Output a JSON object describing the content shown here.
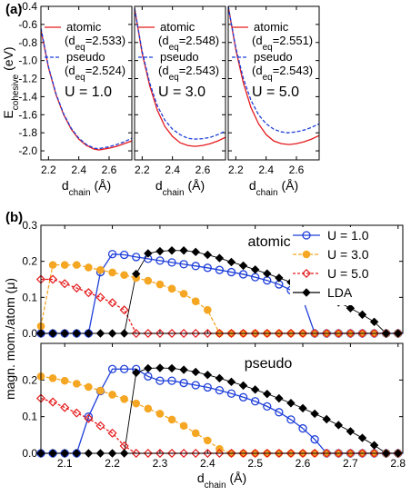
{
  "panel_labels": {
    "a": "(a)",
    "b": "(b)"
  },
  "colors": {
    "atomic": "#e41a1c",
    "pseudo": "#1f3fd9",
    "U1": "#1f3fd9",
    "U3": "#f5a623",
    "U5": "#e41a1c",
    "LDA": "#000000"
  },
  "chart_data": [
    {
      "type": "line",
      "title": "U = 1.0",
      "xlabel": "d_chain (Å)",
      "ylabel": "E_cohesive (eV)",
      "xlim": [
        2.15,
        2.75
      ],
      "ylim": [
        -2.1,
        -0.4
      ],
      "xticks": [
        "2.2",
        "2.4",
        "2.6"
      ],
      "yticks": [
        "-0.4",
        "-0.6",
        "-0.8",
        "-1.0",
        "-1.2",
        "-1.4",
        "-1.6",
        "-1.8",
        "-2.0"
      ],
      "legend": [
        {
          "name": "atomic",
          "sub": "(d_eq=2.533)"
        },
        {
          "name": "pseudo",
          "sub": "(d_eq=2.524)"
        }
      ],
      "series": [
        {
          "name": "atomic",
          "x": [
            2.15,
            2.2,
            2.25,
            2.3,
            2.35,
            2.4,
            2.45,
            2.5,
            2.533,
            2.55,
            2.6,
            2.65,
            2.7,
            2.75
          ],
          "y": [
            -0.66,
            -1.08,
            -1.38,
            -1.6,
            -1.76,
            -1.87,
            -1.94,
            -1.98,
            -1.99,
            -1.985,
            -1.97,
            -1.95,
            -1.92,
            -1.89
          ]
        },
        {
          "name": "pseudo",
          "x": [
            2.15,
            2.2,
            2.25,
            2.3,
            2.35,
            2.4,
            2.45,
            2.5,
            2.524,
            2.55,
            2.6,
            2.65,
            2.7,
            2.75
          ],
          "y": [
            -0.64,
            -1.07,
            -1.37,
            -1.59,
            -1.75,
            -1.86,
            -1.93,
            -1.97,
            -1.975,
            -1.97,
            -1.955,
            -1.93,
            -1.9,
            -1.86
          ]
        }
      ]
    },
    {
      "type": "line",
      "title": "U = 3.0",
      "xlabel": "d_chain (Å)",
      "xlim": [
        2.15,
        2.75
      ],
      "ylim": [
        -2.1,
        -0.4
      ],
      "xticks": [
        "2.2",
        "2.4",
        "2.6"
      ],
      "legend": [
        {
          "name": "atomic",
          "sub": "(d_eq=2.548)"
        },
        {
          "name": "pseudo",
          "sub": "(d_eq=2.543)"
        }
      ],
      "series": [
        {
          "name": "atomic",
          "x": [
            2.15,
            2.2,
            2.25,
            2.3,
            2.35,
            2.4,
            2.45,
            2.5,
            2.548,
            2.6,
            2.65,
            2.7,
            2.75
          ],
          "y": [
            -0.42,
            -0.92,
            -1.28,
            -1.55,
            -1.73,
            -1.84,
            -1.91,
            -1.94,
            -1.95,
            -1.94,
            -1.92,
            -1.89,
            -1.85
          ]
        },
        {
          "name": "pseudo",
          "x": [
            2.15,
            2.2,
            2.25,
            2.3,
            2.35,
            2.4,
            2.45,
            2.5,
            2.543,
            2.6,
            2.65,
            2.7,
            2.75
          ],
          "y": [
            -0.42,
            -0.9,
            -1.25,
            -1.5,
            -1.66,
            -1.76,
            -1.82,
            -1.86,
            -1.87,
            -1.865,
            -1.85,
            -1.82,
            -1.78
          ]
        }
      ]
    },
    {
      "type": "line",
      "title": "U = 5.0",
      "xlabel": "d_chain (Å)",
      "xlim": [
        2.15,
        2.75
      ],
      "ylim": [
        -2.1,
        -0.4
      ],
      "xticks": [
        "2.2",
        "2.4",
        "2.6"
      ],
      "legend": [
        {
          "name": "atomic",
          "sub": "(d_eq=2.551)"
        },
        {
          "name": "pseudo",
          "sub": "(d_eq=2.543)"
        }
      ],
      "series": [
        {
          "name": "atomic",
          "x": [
            2.15,
            2.2,
            2.25,
            2.3,
            2.35,
            2.4,
            2.45,
            2.5,
            2.551,
            2.6,
            2.65,
            2.7,
            2.75
          ],
          "y": [
            -0.4,
            -0.88,
            -1.25,
            -1.52,
            -1.7,
            -1.82,
            -1.89,
            -1.92,
            -1.93,
            -1.92,
            -1.9,
            -1.87,
            -1.83
          ]
        },
        {
          "name": "pseudo",
          "x": [
            2.15,
            2.2,
            2.25,
            2.3,
            2.35,
            2.4,
            2.45,
            2.5,
            2.543,
            2.6,
            2.65,
            2.7,
            2.75
          ],
          "y": [
            -0.4,
            -0.86,
            -1.2,
            -1.44,
            -1.6,
            -1.7,
            -1.76,
            -1.79,
            -1.8,
            -1.79,
            -1.77,
            -1.74,
            -1.7
          ]
        }
      ]
    },
    {
      "type": "line",
      "title": "atomic",
      "ylabel": "magn. mom./atom (μB)",
      "xlim": [
        2.05,
        2.81
      ],
      "ylim": [
        0,
        0.3
      ],
      "yticks": [
        "0.0",
        "0.1",
        "0.2",
        "0.3"
      ],
      "legend": [
        "U = 1.0",
        "U = 3.0",
        "U = 5.0",
        "LDA"
      ],
      "series": [
        {
          "name": "U = 1.0",
          "x": [
            2.05,
            2.075,
            2.1,
            2.125,
            2.15,
            2.175,
            2.2,
            2.225,
            2.25,
            2.275,
            2.3,
            2.325,
            2.35,
            2.375,
            2.4,
            2.425,
            2.45,
            2.475,
            2.5,
            2.525,
            2.55,
            2.575,
            2.6,
            2.625,
            2.65,
            2.675,
            2.7,
            2.725,
            2.75,
            2.775,
            2.8
          ],
          "y": [
            0,
            0,
            0,
            0,
            0,
            0.17,
            0.22,
            0.218,
            0.212,
            0.207,
            0.202,
            0.197,
            0.192,
            0.187,
            0.182,
            0.176,
            0.17,
            0.164,
            0.156,
            0.147,
            0.136,
            0.12,
            0.095,
            0,
            0,
            0,
            0,
            0,
            0,
            0,
            0
          ]
        },
        {
          "name": "U = 3.0",
          "x": [
            2.05,
            2.075,
            2.1,
            2.125,
            2.15,
            2.175,
            2.2,
            2.225,
            2.25,
            2.275,
            2.3,
            2.325,
            2.35,
            2.375,
            2.4,
            2.425,
            2.45,
            2.475,
            2.5,
            2.525,
            2.55,
            2.575,
            2.6,
            2.625,
            2.65,
            2.675,
            2.7,
            2.725,
            2.75,
            2.775,
            2.8
          ],
          "y": [
            0.02,
            0.19,
            0.19,
            0.19,
            0.183,
            0.176,
            0.169,
            0.162,
            0.154,
            0.146,
            0.136,
            0.124,
            0.11,
            0.089,
            0.065,
            0,
            0,
            0,
            0,
            0,
            0,
            0,
            0,
            0,
            0,
            0,
            0,
            0,
            0,
            0,
            0
          ]
        },
        {
          "name": "U = 5.0",
          "x": [
            2.05,
            2.075,
            2.1,
            2.125,
            2.15,
            2.175,
            2.2,
            2.225,
            2.25,
            2.275,
            2.3,
            2.325,
            2.35,
            2.375,
            2.4,
            2.425,
            2.45,
            2.475,
            2.5,
            2.525,
            2.55,
            2.575,
            2.6,
            2.625,
            2.65,
            2.675,
            2.7,
            2.725,
            2.75,
            2.775,
            2.8
          ],
          "y": [
            0.15,
            0.15,
            0.138,
            0.126,
            0.113,
            0.1,
            0.085,
            0.065,
            0,
            0,
            0,
            0,
            0,
            0,
            0,
            0,
            0,
            0,
            0,
            0,
            0,
            0,
            0,
            0,
            0,
            0,
            0,
            0,
            0,
            0,
            0
          ]
        },
        {
          "name": "LDA",
          "x": [
            2.05,
            2.075,
            2.1,
            2.125,
            2.15,
            2.175,
            2.2,
            2.225,
            2.25,
            2.275,
            2.3,
            2.325,
            2.35,
            2.375,
            2.4,
            2.425,
            2.45,
            2.475,
            2.5,
            2.525,
            2.55,
            2.575,
            2.6,
            2.625,
            2.65,
            2.675,
            2.7,
            2.725,
            2.75,
            2.775,
            2.8
          ],
          "y": [
            0,
            0,
            0,
            0,
            0,
            0,
            0,
            0,
            0.165,
            0.222,
            0.228,
            0.23,
            0.23,
            0.226,
            0.218,
            0.209,
            0.198,
            0.188,
            0.177,
            0.166,
            0.154,
            0.142,
            0.129,
            0.115,
            0.101,
            0.086,
            0.07,
            0.052,
            0.032,
            0,
            0
          ]
        }
      ]
    },
    {
      "type": "line",
      "title": "pseudo",
      "xlabel": "d_chain (Å)",
      "ylabel": "magn. mom./atom (μB)",
      "xlim": [
        2.05,
        2.81
      ],
      "ylim": [
        0,
        0.3
      ],
      "xticks": [
        "2.1",
        "2.2",
        "2.3",
        "2.4",
        "2.5",
        "2.6",
        "2.7",
        "2.8"
      ],
      "yticks": [
        "0.0",
        "0.1",
        "0.2"
      ],
      "series": [
        {
          "name": "U = 1.0",
          "x": [
            2.05,
            2.075,
            2.1,
            2.125,
            2.15,
            2.175,
            2.2,
            2.225,
            2.25,
            2.275,
            2.3,
            2.325,
            2.35,
            2.375,
            2.4,
            2.425,
            2.45,
            2.475,
            2.5,
            2.525,
            2.55,
            2.575,
            2.6,
            2.625,
            2.65,
            2.675,
            2.7,
            2.725,
            2.75,
            2.775,
            2.8
          ],
          "y": [
            0,
            0,
            0,
            0,
            0.1,
            0.17,
            0.23,
            0.23,
            0.23,
            0.21,
            0.198,
            0.198,
            0.192,
            0.186,
            0.18,
            0.172,
            0.163,
            0.153,
            0.142,
            0.128,
            0.112,
            0.092,
            0.068,
            0.038,
            0,
            0,
            0,
            0,
            0,
            0,
            0
          ]
        },
        {
          "name": "U = 3.0",
          "x": [
            2.05,
            2.075,
            2.1,
            2.125,
            2.15,
            2.175,
            2.2,
            2.225,
            2.25,
            2.275,
            2.3,
            2.325,
            2.35,
            2.375,
            2.4,
            2.425,
            2.45,
            2.475,
            2.5,
            2.525,
            2.55,
            2.575,
            2.6,
            2.625,
            2.65,
            2.675,
            2.7,
            2.725,
            2.75,
            2.775,
            2.8
          ],
          "y": [
            0.21,
            0.205,
            0.198,
            0.19,
            0.181,
            0.171,
            0.16,
            0.148,
            0.136,
            0.122,
            0.108,
            0.092,
            0.075,
            0.055,
            0.035,
            0.012,
            0,
            0,
            0,
            0,
            0,
            0,
            0,
            0,
            0,
            0,
            0,
            0,
            0,
            0,
            0
          ]
        },
        {
          "name": "U = 5.0",
          "x": [
            2.05,
            2.075,
            2.1,
            2.125,
            2.15,
            2.175,
            2.2,
            2.225,
            2.25,
            2.275,
            2.3,
            2.325,
            2.35,
            2.375,
            2.4,
            2.425,
            2.45,
            2.475,
            2.5,
            2.525,
            2.55,
            2.575,
            2.6,
            2.625,
            2.65,
            2.675,
            2.7,
            2.725,
            2.75,
            2.775,
            2.8
          ],
          "y": [
            0.15,
            0.14,
            0.125,
            0.11,
            0.095,
            0.075,
            0.055,
            0.02,
            0,
            0,
            0,
            0,
            0,
            0,
            0,
            0,
            0,
            0,
            0,
            0,
            0,
            0,
            0,
            0,
            0,
            0,
            0,
            0,
            0,
            0,
            0
          ]
        },
        {
          "name": "LDA",
          "x": [
            2.05,
            2.075,
            2.1,
            2.125,
            2.15,
            2.175,
            2.2,
            2.225,
            2.25,
            2.275,
            2.3,
            2.325,
            2.35,
            2.375,
            2.4,
            2.425,
            2.45,
            2.475,
            2.5,
            2.525,
            2.55,
            2.575,
            2.6,
            2.625,
            2.65,
            2.675,
            2.7,
            2.725,
            2.75,
            2.775,
            2.8
          ],
          "y": [
            0,
            0,
            0,
            0,
            0,
            0,
            0,
            0,
            0.22,
            0.232,
            0.233,
            0.232,
            0.228,
            0.222,
            0.214,
            0.205,
            0.195,
            0.185,
            0.174,
            0.162,
            0.15,
            0.137,
            0.123,
            0.108,
            0.093,
            0.077,
            0.06,
            0.042,
            0.022,
            0,
            0
          ]
        }
      ]
    }
  ]
}
